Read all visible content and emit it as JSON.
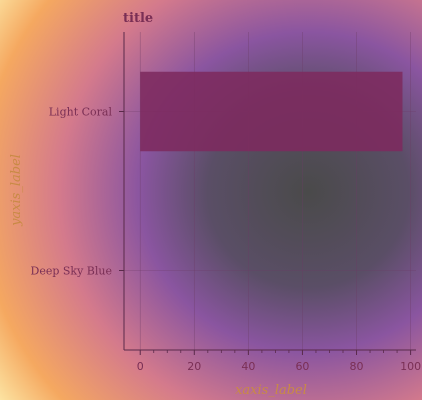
{
  "chart_data": {
    "type": "bar",
    "orientation": "horizontal",
    "title": "title",
    "xlabel": "xaxis_label",
    "ylabel": "yaxis_label",
    "categories": [
      "Light Coral",
      "Deep Sky Blue"
    ],
    "series": [
      {
        "values": [
          97,
          null
        ]
      }
    ],
    "xlim": [
      -6,
      102
    ],
    "xticks": [
      0,
      20,
      40,
      60,
      80,
      100
    ],
    "grid": true,
    "legend": "none",
    "colors": {
      "bar": "#7d2a5e",
      "text": "#7a2f55",
      "axis_label": "#c98a45",
      "axis": "#5a2a4a",
      "grid": "#6e3c66"
    }
  }
}
